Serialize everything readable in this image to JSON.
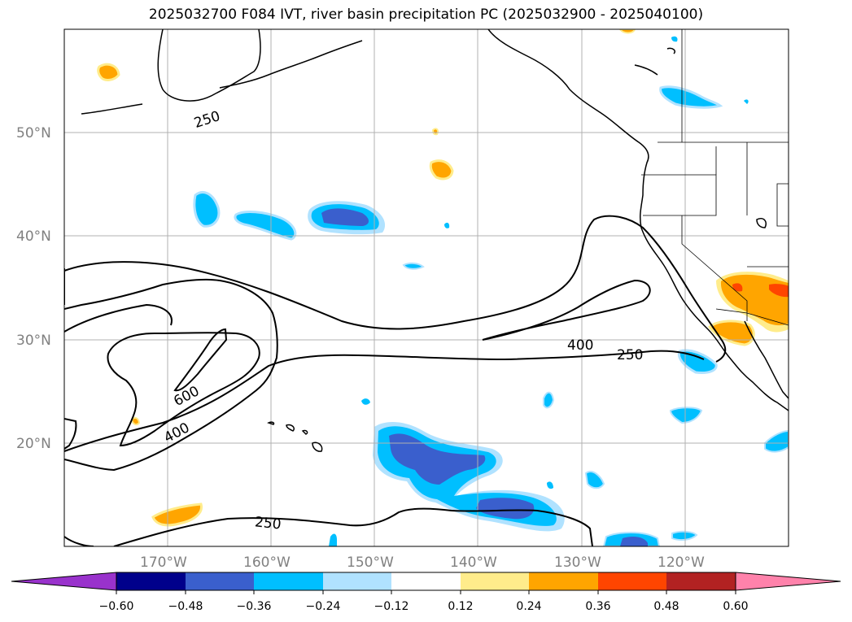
{
  "title": "2025032700 F084 IVT, river basin precipitation PC (2025032900 - 2025040100)",
  "map": {
    "lon_range": [
      -180,
      -110
    ],
    "lat_range": [
      10,
      60
    ],
    "lat_ticks": [
      "50°N",
      "40°N",
      "30°N",
      "20°N"
    ],
    "lon_ticks": [
      "170°W",
      "160°W",
      "150°W",
      "140°W",
      "130°W",
      "120°W"
    ],
    "contour_labels": [
      "250",
      "600",
      "400",
      "400",
      "250",
      "250"
    ],
    "contour_levels": [
      250,
      400,
      600
    ],
    "gridlines": true,
    "features": [
      "coastlines",
      "country-borders",
      "state-borders",
      "ivt-contours",
      "precipitation-pc-fill"
    ]
  },
  "colorbar": {
    "tick_labels": [
      "−0.60",
      "−0.48",
      "−0.36",
      "−0.24",
      "−0.12",
      "0.12",
      "0.24",
      "0.36",
      "0.48",
      "0.60"
    ],
    "colors": [
      "#9932cc",
      "#00008b",
      "#3a5fcd",
      "#00bfff",
      "#b0e2ff",
      "#ffffff",
      "#ffec8b",
      "#ffa500",
      "#ff4500",
      "#b22222",
      "#ff82ab"
    ]
  }
}
